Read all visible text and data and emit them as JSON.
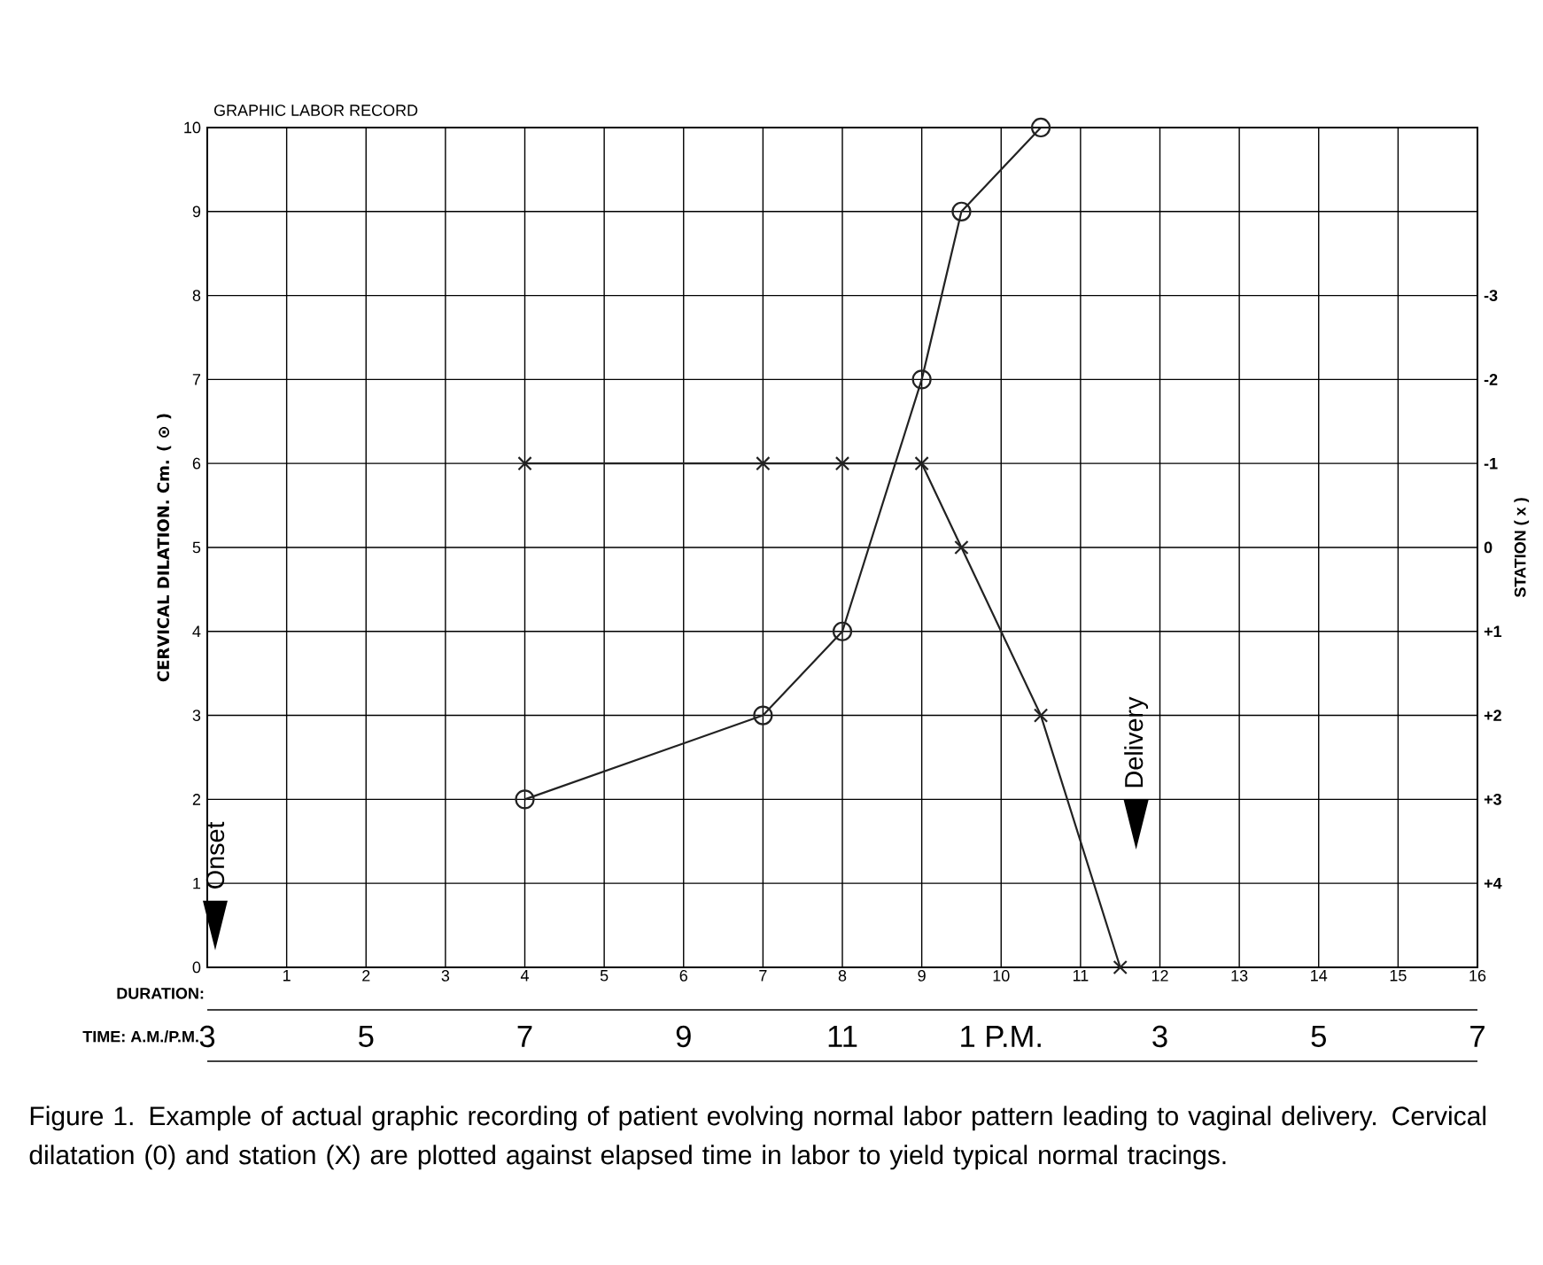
{
  "chart_data": {
    "type": "line",
    "title": "GRAPHIC LABOR RECORD",
    "xlabel": "DURATION:",
    "ylabel": "CERVICAL DILATION. Cm. ( ⊙ )",
    "y2label": "STATION ( x )",
    "xlim": [
      0,
      16
    ],
    "xticks": [
      1,
      2,
      3,
      4,
      5,
      6,
      7,
      8,
      9,
      10,
      11,
      12,
      13,
      14,
      15,
      16
    ],
    "ylim": [
      0,
      10
    ],
    "yticks": [
      0,
      1,
      2,
      3,
      4,
      5,
      6,
      7,
      8,
      9,
      10
    ],
    "y2lim": [
      5,
      -5
    ],
    "y2ticks": [
      -3,
      -2,
      -1,
      0,
      {
        "value": 1,
        "label": "+1"
      },
      {
        "value": 2,
        "label": "+2"
      },
      {
        "value": 3,
        "label": "+3"
      },
      {
        "value": 4,
        "label": "+4"
      }
    ],
    "grid": true,
    "series": [
      {
        "color": "#222222",
        "marker": "circle",
        "x": [
          4,
          7,
          8,
          9,
          9.5,
          10.5
        ],
        "values": [
          2,
          3,
          4,
          7,
          9,
          10
        ]
      },
      {
        "color": "#222222",
        "marker": "cross",
        "axis": "y2",
        "x": [
          4,
          7,
          8,
          9,
          9.5,
          10.5,
          11.5
        ],
        "values": [
          -1,
          -1,
          -1,
          -1,
          0,
          2,
          5
        ]
      }
    ],
    "annotations": [
      "Onset",
      "Delivery",
      "TIME: A.M./P.M.",
      "3",
      "5",
      "7",
      "9",
      "11",
      "1 P.M.",
      "3",
      "5",
      "7",
      "Figure 1. Example of actual graphic recording of patient evolving normal labor pattern leading to vaginal delivery. Cervical dilatation (0) and station (X) are plotted against elapsed time in labor to yield typical normal tracings."
    ]
  }
}
